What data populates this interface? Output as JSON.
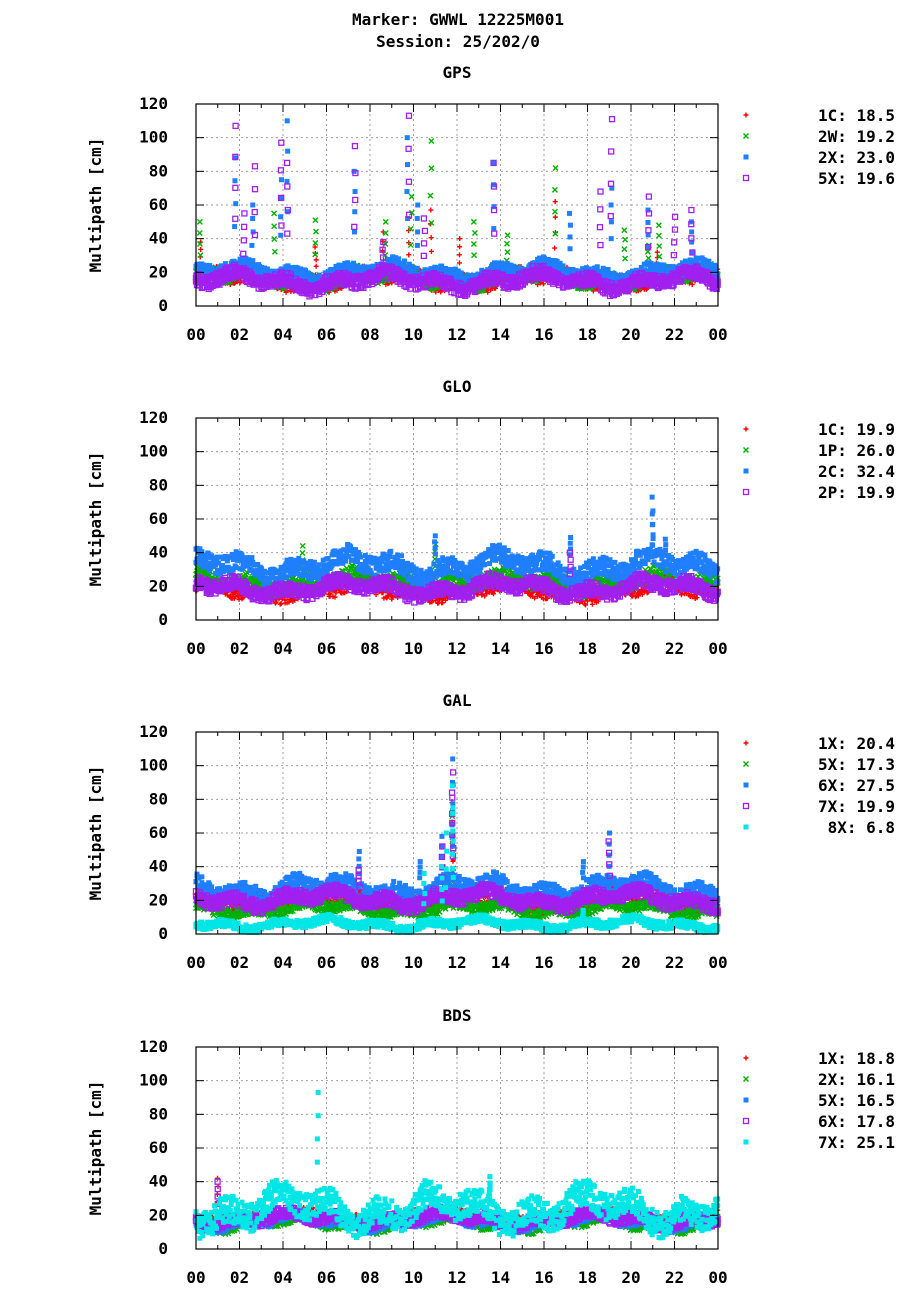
{
  "header": {
    "marker_line": "Marker: GWWL 12225M001",
    "session_line": "Session: 25/202/0"
  },
  "colors": {
    "red": "#ff0000",
    "green": "#00b000",
    "blue": "#1f7fff",
    "purple": "#a020f0",
    "cyan": "#00e5e5"
  },
  "chart_data": [
    {
      "type": "scatter",
      "title": "GPS",
      "ylabel": "Multipath [cm]",
      "ylim": [
        0,
        120
      ],
      "yticks": [
        0,
        20,
        40,
        60,
        80,
        100,
        120
      ],
      "xlim": [
        0,
        24
      ],
      "xtick_labels": [
        "00",
        "02",
        "04",
        "06",
        "08",
        "10",
        "12",
        "14",
        "16",
        "18",
        "20",
        "22",
        "00"
      ],
      "grid": true,
      "legend_position": "right",
      "series": [
        {
          "name": "1C",
          "label": "1C: 18.5",
          "marker": "plus",
          "color": "#ff0000",
          "base": 16,
          "spread": 5,
          "spikes": [
            [
              0.2,
              38
            ],
            [
              5.5,
              35
            ],
            [
              8.6,
              44
            ],
            [
              9.8,
              52
            ],
            [
              10.8,
              57
            ],
            [
              12.1,
              40
            ],
            [
              16.5,
              62
            ],
            [
              21.2,
              32
            ],
            [
              22.5,
              18
            ]
          ]
        },
        {
          "name": "2W",
          "label": "2W: 19.2",
          "marker": "cross",
          "color": "#00b000",
          "base": 17,
          "spread": 5,
          "spikes": [
            [
              0.2,
              50
            ],
            [
              3.6,
              55
            ],
            [
              5.5,
              51
            ],
            [
              8.7,
              50
            ],
            [
              9.9,
              65
            ],
            [
              10.8,
              98
            ],
            [
              12.8,
              50
            ],
            [
              14.3,
              42
            ],
            [
              16.5,
              82
            ],
            [
              19.7,
              45
            ],
            [
              20.8,
              36
            ],
            [
              21.3,
              48
            ]
          ]
        },
        {
          "name": "2X",
          "label": "2X: 23.0",
          "marker": "square",
          "color": "#1f7fff",
          "base": 20,
          "spread": 5,
          "spikes": [
            [
              1.8,
              88
            ],
            [
              2.6,
              60
            ],
            [
              3.9,
              75
            ],
            [
              4.2,
              110
            ],
            [
              7.3,
              80
            ],
            [
              9.7,
              100
            ],
            [
              10.2,
              60
            ],
            [
              13.7,
              85
            ],
            [
              17.2,
              55
            ],
            [
              19.1,
              70
            ],
            [
              20.8,
              57
            ],
            [
              22.8,
              50
            ]
          ]
        },
        {
          "name": "5X",
          "label": "5X: 19.6",
          "marker": "open-square",
          "color": "#a020f0",
          "base": 15,
          "spread": 5,
          "spikes": [
            [
              1.8,
              107
            ],
            [
              2.2,
              55
            ],
            [
              2.7,
              83
            ],
            [
              3.9,
              97
            ],
            [
              4.2,
              85
            ],
            [
              7.3,
              95
            ],
            [
              8.6,
              38
            ],
            [
              9.8,
              113
            ],
            [
              10.5,
              52
            ],
            [
              13.7,
              85
            ],
            [
              18.6,
              68
            ],
            [
              19.1,
              111
            ],
            [
              20.8,
              65
            ],
            [
              22.0,
              53
            ],
            [
              22.8,
              57
            ]
          ]
        }
      ]
    },
    {
      "type": "scatter",
      "title": "GLO",
      "ylabel": "Multipath [cm]",
      "ylim": [
        0,
        120
      ],
      "yticks": [
        0,
        20,
        40,
        60,
        80,
        100,
        120
      ],
      "xlim": [
        0,
        24
      ],
      "xtick_labels": [
        "00",
        "02",
        "04",
        "06",
        "08",
        "10",
        "12",
        "14",
        "16",
        "18",
        "20",
        "22",
        "00"
      ],
      "grid": true,
      "legend_position": "right",
      "series": [
        {
          "name": "1C",
          "label": "1C: 19.9",
          "marker": "plus",
          "color": "#ff0000",
          "base": 18,
          "spread": 5,
          "spikes": [
            [
              21.0,
              44
            ]
          ]
        },
        {
          "name": "1P",
          "label": "1P: 26.0",
          "marker": "cross",
          "color": "#00b000",
          "base": 23,
          "spread": 5,
          "spikes": [
            [
              4.9,
              44
            ],
            [
              11.0,
              45
            ]
          ]
        },
        {
          "name": "2C",
          "label": "2C: 32.4",
          "marker": "square",
          "color": "#1f7fff",
          "base": 32,
          "spread": 7,
          "spikes": [
            [
              21.0,
              73
            ],
            [
              21.0,
              63
            ],
            [
              21.6,
              48
            ],
            [
              11.0,
              50
            ],
            [
              17.2,
              49
            ]
          ]
        },
        {
          "name": "2P",
          "label": "2P: 19.9",
          "marker": "open-square",
          "color": "#a020f0",
          "base": 19,
          "spread": 5,
          "spikes": [
            [
              17.2,
              40
            ]
          ]
        }
      ]
    },
    {
      "type": "scatter",
      "title": "GAL",
      "ylabel": "Multipath [cm]",
      "ylim": [
        0,
        120
      ],
      "yticks": [
        0,
        20,
        40,
        60,
        80,
        100,
        120
      ],
      "xlim": [
        0,
        24
      ],
      "xtick_labels": [
        "00",
        "02",
        "04",
        "06",
        "08",
        "10",
        "12",
        "14",
        "16",
        "18",
        "20",
        "22",
        "00"
      ],
      "grid": true,
      "legend_position": "right",
      "series": [
        {
          "name": "1X",
          "label": "1X: 20.4",
          "marker": "plus",
          "color": "#ff0000",
          "base": 20,
          "spread": 5,
          "spikes": [
            [
              11.8,
              60
            ],
            [
              11.8,
              78
            ],
            [
              4.0,
              29
            ],
            [
              17.2,
              24
            ]
          ]
        },
        {
          "name": "5X",
          "label": "5X: 17.3",
          "marker": "cross",
          "color": "#00b000",
          "base": 15,
          "spread": 4,
          "spikes": [
            [
              11.8,
              70
            ],
            [
              11.8,
              55
            ]
          ]
        },
        {
          "name": "6X",
          "label": "6X: 27.5",
          "marker": "square",
          "color": "#1f7fff",
          "base": 27,
          "spread": 6,
          "spikes": [
            [
              11.8,
              104
            ],
            [
              11.3,
              58
            ],
            [
              11.8,
              90
            ],
            [
              7.5,
              49
            ],
            [
              17.8,
              43
            ],
            [
              19.0,
              60
            ],
            [
              10.3,
              43
            ]
          ]
        },
        {
          "name": "7X",
          "label": "7X: 19.9",
          "marker": "open-square",
          "color": "#a020f0",
          "base": 21,
          "spread": 5,
          "spikes": [
            [
              11.8,
              96
            ],
            [
              11.3,
              52
            ],
            [
              11.8,
              84
            ],
            [
              7.5,
              38
            ],
            [
              19.0,
              55
            ]
          ]
        },
        {
          "name": "8X",
          "label": "8X:  6.8",
          "marker": "square",
          "color": "#00e5e5",
          "base": 6,
          "spread": 3,
          "spikes": [
            [
              11.8,
              88
            ],
            [
              11.3,
              40
            ],
            [
              11.8,
              75
            ],
            [
              11.5,
              60
            ],
            [
              10.5,
              36
            ],
            [
              17.8,
              14
            ]
          ]
        }
      ]
    },
    {
      "type": "scatter",
      "title": "BDS",
      "ylabel": "Multipath [cm]",
      "ylim": [
        0,
        120
      ],
      "yticks": [
        0,
        20,
        40,
        60,
        80,
        100,
        120
      ],
      "xlim": [
        0,
        24
      ],
      "xtick_labels": [
        "00",
        "02",
        "04",
        "06",
        "08",
        "10",
        "12",
        "14",
        "16",
        "18",
        "20",
        "22",
        "00"
      ],
      "grid": true,
      "legend_position": "right",
      "series": [
        {
          "name": "1X",
          "label": "1X: 18.8",
          "marker": "plus",
          "color": "#ff0000",
          "base": 18,
          "spread": 4,
          "spikes": [
            [
              1.0,
              42
            ]
          ]
        },
        {
          "name": "2X",
          "label": "2X: 16.1",
          "marker": "cross",
          "color": "#00b000",
          "base": 16,
          "spread": 4,
          "spikes": []
        },
        {
          "name": "5X",
          "label": "5X: 16.5",
          "marker": "square",
          "color": "#1f7fff",
          "base": 17,
          "spread": 4,
          "spikes": []
        },
        {
          "name": "6X",
          "label": "6X: 17.8",
          "marker": "open-square",
          "color": "#a020f0",
          "base": 18,
          "spread": 4,
          "spikes": [
            [
              1.0,
              40
            ]
          ]
        },
        {
          "name": "7X",
          "label": "7X: 25.1",
          "marker": "square",
          "color": "#00e5e5",
          "base": 24,
          "spread": 10,
          "spikes": [
            [
              5.6,
              93
            ],
            [
              13.5,
              43
            ],
            [
              13.5,
              38
            ]
          ]
        }
      ]
    }
  ]
}
